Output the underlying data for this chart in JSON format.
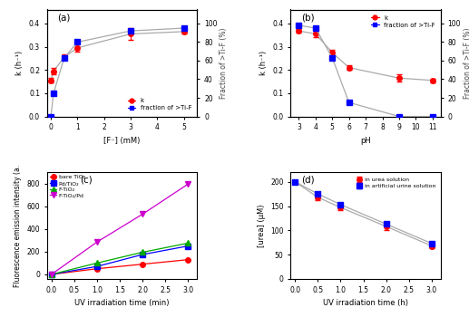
{
  "a": {
    "F_conc": [
      0,
      0.1,
      0.5,
      1,
      3,
      5
    ],
    "k": [
      0.155,
      0.195,
      0.255,
      0.295,
      0.355,
      0.365
    ],
    "k_err": [
      0.01,
      0.015,
      0.012,
      0.015,
      0.025,
      0.01
    ],
    "fraction": [
      0,
      25,
      63,
      80,
      92,
      95
    ],
    "fraction_err": [
      0,
      1,
      2,
      2,
      2,
      1
    ],
    "xlabel": "[F⁻] (mM)",
    "ylabel_left": "k (h⁻¹)",
    "ylabel_right": "Fraction of >Ti-F (%)",
    "label_a": "(a)",
    "legend_k": "k",
    "legend_frac": "fraction of >Ti-F",
    "xlim": [
      -0.15,
      5.5
    ],
    "ylim_left": [
      0,
      0.46
    ],
    "ylim_right": [
      0,
      115
    ],
    "xticks": [
      0,
      1,
      2,
      3,
      4,
      5
    ],
    "yticks_left": [
      0.0,
      0.1,
      0.2,
      0.3,
      0.4
    ],
    "yticks_right": [
      0,
      20,
      40,
      60,
      80,
      100
    ]
  },
  "b": {
    "pH": [
      3,
      4,
      5,
      6,
      9,
      11
    ],
    "k": [
      0.368,
      0.355,
      0.275,
      0.21,
      0.165,
      0.155
    ],
    "k_err": [
      0.008,
      0.015,
      0.012,
      0.01,
      0.015,
      0.008
    ],
    "fraction": [
      98,
      95,
      63,
      15,
      0,
      0
    ],
    "fraction_err": [
      1,
      2,
      2,
      2,
      0,
      0
    ],
    "xlabel": "pH",
    "ylabel_left": "k (h⁻¹)",
    "ylabel_right": "Fraction of >Ti-F (%)",
    "label_b": "(b)",
    "legend_k": "k",
    "legend_frac": "fraction of >Ti-F",
    "xlim": [
      2.5,
      11.5
    ],
    "ylim_left": [
      0,
      0.46
    ],
    "ylim_right": [
      0,
      115
    ],
    "xticks": [
      3,
      4,
      5,
      6,
      7,
      8,
      9,
      10,
      11
    ],
    "yticks_left": [
      0.0,
      0.1,
      0.2,
      0.3,
      0.4
    ],
    "yticks_right": [
      0,
      20,
      40,
      60,
      80,
      100
    ]
  },
  "c": {
    "time": [
      0,
      1,
      2,
      3
    ],
    "bare_TiO2": [
      0,
      50,
      90,
      130
    ],
    "Pd_TiO2": [
      0,
      70,
      175,
      250
    ],
    "F_TiO2": [
      0,
      100,
      195,
      275
    ],
    "F_TiO2_Pd": [
      0,
      285,
      530,
      795
    ],
    "xlabel": "UV irradiation time (min)",
    "ylabel": "Fluorescence emission intensity (a.",
    "label_c": "(c)",
    "colors": [
      "#ff0000",
      "#0000ff",
      "#00aa00",
      "#cc00cc"
    ],
    "markers": [
      "o",
      "s",
      "^",
      "v"
    ],
    "legends": [
      "bare TiO₂",
      "Pd/TiO₂",
      "F-TiO₂",
      "F-TiO₂/Pd"
    ],
    "xlim": [
      -0.1,
      3.2
    ],
    "ylim": [
      -40,
      900
    ],
    "xticks": [
      0.0,
      0.5,
      1.0,
      1.5,
      2.0,
      2.5,
      3.0
    ],
    "yticks": [
      0,
      200,
      400,
      600,
      800
    ]
  },
  "d": {
    "time": [
      0.0,
      0.5,
      1.0,
      2.0,
      3.0
    ],
    "urea_solution": [
      200,
      168,
      147,
      108,
      68
    ],
    "urea_err": [
      3,
      5,
      5,
      8,
      4
    ],
    "artificial_urine": [
      200,
      175,
      153,
      113,
      73
    ],
    "urine_err": [
      2,
      3,
      3,
      4,
      3
    ],
    "xlabel": "UV irradiation time (h)",
    "ylabel": "[urea] (μM)",
    "label_d": "(d)",
    "colors": [
      "#ff0000",
      "#0000ff"
    ],
    "markers": [
      "o",
      "s"
    ],
    "legends": [
      "in urea solution",
      "in artificial urine solution"
    ],
    "xlim": [
      -0.1,
      3.2
    ],
    "ylim": [
      0,
      220
    ],
    "xticks": [
      0.0,
      0.5,
      1.0,
      1.5,
      2.0,
      2.5,
      3.0
    ],
    "yticks": [
      0,
      50,
      100,
      150,
      200
    ]
  },
  "line_color": "#aaaaaa",
  "bg_color": "#ffffff"
}
